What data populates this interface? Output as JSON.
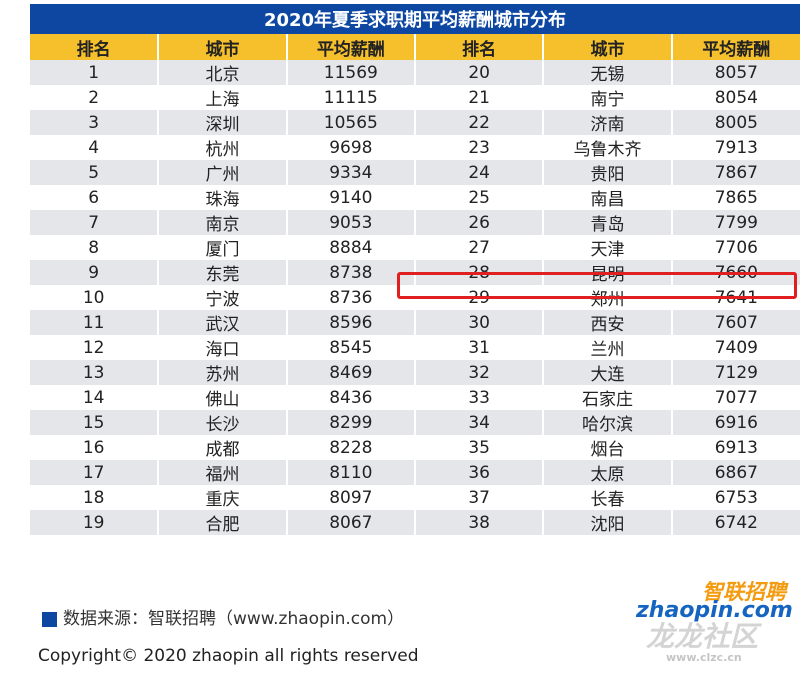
{
  "title": "2020年夏季求职期平均薪酬城市分布",
  "headers": [
    "排名",
    "城市",
    "平均薪酬",
    "排名",
    "城市",
    "平均薪酬"
  ],
  "rows": [
    [
      "1",
      "北京",
      "11569",
      "20",
      "无锡",
      "8057"
    ],
    [
      "2",
      "上海",
      "11115",
      "21",
      "南宁",
      "8054"
    ],
    [
      "3",
      "深圳",
      "10565",
      "22",
      "济南",
      "8005"
    ],
    [
      "4",
      "杭州",
      "9698",
      "23",
      "乌鲁木齐",
      "7913"
    ],
    [
      "5",
      "广州",
      "9334",
      "24",
      "贵阳",
      "7867"
    ],
    [
      "6",
      "珠海",
      "9140",
      "25",
      "南昌",
      "7865"
    ],
    [
      "7",
      "南京",
      "9053",
      "26",
      "青岛",
      "7799"
    ],
    [
      "8",
      "厦门",
      "8884",
      "27",
      "天津",
      "7706"
    ],
    [
      "9",
      "东莞",
      "8738",
      "28",
      "昆明",
      "7660"
    ],
    [
      "10",
      "宁波",
      "8736",
      "29",
      "郑州",
      "7641"
    ],
    [
      "11",
      "武汉",
      "8596",
      "30",
      "西安",
      "7607"
    ],
    [
      "12",
      "海口",
      "8545",
      "31",
      "兰州",
      "7409"
    ],
    [
      "13",
      "苏州",
      "8469",
      "32",
      "大连",
      "7129"
    ],
    [
      "14",
      "佛山",
      "8436",
      "33",
      "石家庄",
      "7077"
    ],
    [
      "15",
      "长沙",
      "8299",
      "34",
      "哈尔滨",
      "6916"
    ],
    [
      "16",
      "成都",
      "8228",
      "35",
      "烟台",
      "6913"
    ],
    [
      "17",
      "福州",
      "8110",
      "36",
      "太原",
      "6867"
    ],
    [
      "18",
      "重庆",
      "8097",
      "37",
      "长春",
      "6753"
    ],
    [
      "19",
      "合肥",
      "8067",
      "38",
      "沈阳",
      "6742"
    ]
  ],
  "highlighted_row": "28",
  "source": "数据来源：智联招聘（www.zhaopin.com）",
  "copyright": "Copyright© 2020 zhaopin all rights reserved",
  "logo": {
    "cn": "智联招聘",
    "en": "zhaopin.com"
  },
  "watermark": {
    "text": "龙龙社区",
    "url": "www.clzc.cn"
  },
  "colors": {
    "title_bg": "#0d47a1",
    "header_bg": "#f6c02c",
    "stripe": "#e4e6ea",
    "highlight": "#e02020",
    "logo_orange": "#f39c12",
    "logo_blue": "#1565c0"
  }
}
